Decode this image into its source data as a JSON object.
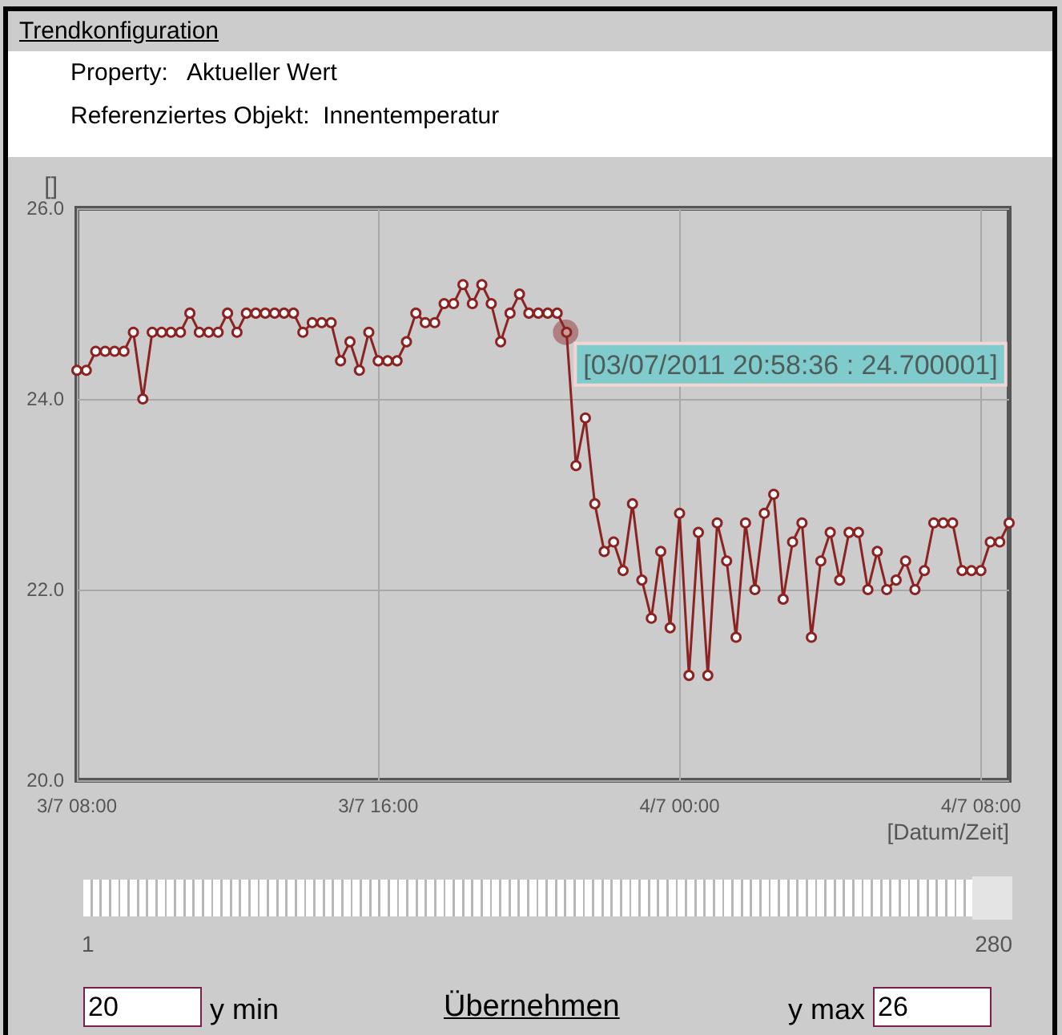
{
  "chart_data": {
    "type": "line",
    "title": "Trendkonfiguration",
    "xlabel": "[Datum/Zeit]",
    "ylabel": "[]",
    "x": [
      "2011-07-03T08:00",
      "2011-07-03T08:15",
      "2011-07-03T08:30",
      "2011-07-03T08:45",
      "2011-07-03T09:00",
      "2011-07-03T09:15",
      "2011-07-03T09:30",
      "2011-07-03T09:45",
      "2011-07-03T10:00",
      "2011-07-03T10:15",
      "2011-07-03T10:30",
      "2011-07-03T10:45",
      "2011-07-03T11:00",
      "2011-07-03T11:15",
      "2011-07-03T11:30",
      "2011-07-03T11:45",
      "2011-07-03T12:00",
      "2011-07-03T12:15",
      "2011-07-03T12:30",
      "2011-07-03T12:45",
      "2011-07-03T13:00",
      "2011-07-03T13:15",
      "2011-07-03T13:30",
      "2011-07-03T13:45",
      "2011-07-03T14:00",
      "2011-07-03T14:15",
      "2011-07-03T14:30",
      "2011-07-03T14:45",
      "2011-07-03T15:00",
      "2011-07-03T15:15",
      "2011-07-03T15:30",
      "2011-07-03T15:45",
      "2011-07-03T16:00",
      "2011-07-03T16:15",
      "2011-07-03T16:30",
      "2011-07-03T16:45",
      "2011-07-03T17:00",
      "2011-07-03T17:15",
      "2011-07-03T17:30",
      "2011-07-03T17:45",
      "2011-07-03T18:00",
      "2011-07-03T18:15",
      "2011-07-03T18:30",
      "2011-07-03T18:45",
      "2011-07-03T19:00",
      "2011-07-03T19:15",
      "2011-07-03T19:30",
      "2011-07-03T19:45",
      "2011-07-03T20:00",
      "2011-07-03T20:15",
      "2011-07-03T20:30",
      "2011-07-03T20:45",
      "2011-07-03T21:00",
      "2011-07-03T21:15",
      "2011-07-03T21:30",
      "2011-07-03T21:45",
      "2011-07-03T22:00",
      "2011-07-03T22:15",
      "2011-07-03T22:30",
      "2011-07-03T22:45",
      "2011-07-03T23:00",
      "2011-07-03T23:15",
      "2011-07-03T23:30",
      "2011-07-03T23:45",
      "2011-07-04T00:00",
      "2011-07-04T00:15",
      "2011-07-04T00:30",
      "2011-07-04T00:45",
      "2011-07-04T01:00",
      "2011-07-04T01:15",
      "2011-07-04T01:30",
      "2011-07-04T01:45",
      "2011-07-04T02:00",
      "2011-07-04T02:15",
      "2011-07-04T02:30",
      "2011-07-04T02:45",
      "2011-07-04T03:00",
      "2011-07-04T03:15",
      "2011-07-04T03:30",
      "2011-07-04T03:45",
      "2011-07-04T04:00",
      "2011-07-04T04:15",
      "2011-07-04T04:30",
      "2011-07-04T04:45",
      "2011-07-04T05:00",
      "2011-07-04T05:15",
      "2011-07-04T05:30",
      "2011-07-04T05:45",
      "2011-07-04T06:00",
      "2011-07-04T06:15",
      "2011-07-04T06:30",
      "2011-07-04T06:45",
      "2011-07-04T07:00",
      "2011-07-04T07:15",
      "2011-07-04T07:30",
      "2011-07-04T07:45",
      "2011-07-04T08:00",
      "2011-07-04T08:15",
      "2011-07-04T08:30",
      "2011-07-04T08:45"
    ],
    "series": [
      {
        "color": "#8c2323",
        "values": [
          24.3,
          24.3,
          24.5,
          24.5,
          24.5,
          24.5,
          24.7,
          24.0,
          24.7,
          24.7,
          24.7,
          24.7,
          24.9,
          24.7,
          24.7,
          24.7,
          24.9,
          24.7,
          24.9,
          24.9,
          24.9,
          24.9,
          24.9,
          24.9,
          24.7,
          24.8,
          24.8,
          24.8,
          24.4,
          24.6,
          24.3,
          24.7,
          24.4,
          24.4,
          24.4,
          24.6,
          24.9,
          24.8,
          24.8,
          25.0,
          25.0,
          25.2,
          25.0,
          25.2,
          25.0,
          24.6,
          24.9,
          25.1,
          24.9,
          24.9,
          24.9,
          24.9,
          24.7,
          23.3,
          23.8,
          22.9,
          22.4,
          22.5,
          22.2,
          22.9,
          22.1,
          21.7,
          22.4,
          21.6,
          22.8,
          21.1,
          22.6,
          21.1,
          22.7,
          22.3,
          21.5,
          22.7,
          22.0,
          22.8,
          23.0,
          21.9,
          22.5,
          22.7,
          21.5,
          22.3,
          22.6,
          22.1,
          22.6,
          22.6,
          22.0,
          22.4,
          22.0,
          22.1,
          22.3,
          22.0,
          22.2,
          22.7,
          22.7,
          22.7,
          22.2,
          22.2,
          22.2,
          22.5,
          22.5,
          22.7
        ]
      }
    ],
    "xlim": [
      "2011-07-03T08:00",
      "2011-07-04T08:45"
    ],
    "xticks": [
      {
        "value": "2011-07-03T08:00",
        "label": "3/7 08:00"
      },
      {
        "value": "2011-07-03T16:00",
        "label": "3/7 16:00"
      },
      {
        "value": "2011-07-04T00:00",
        "label": "4/7 00:00"
      },
      {
        "value": "2011-07-04T08:00",
        "label": "4/7 08:00"
      }
    ],
    "ylim": [
      20,
      26
    ],
    "yticks": [
      {
        "value": 20,
        "label": "20.0"
      },
      {
        "value": 22,
        "label": "22.0"
      },
      {
        "value": 24,
        "label": "24.0"
      },
      {
        "value": 26,
        "label": "26.0"
      }
    ],
    "grid": true,
    "marker": "circle",
    "line_style": "solid",
    "annotations": [
      "Property:   Aktueller Wert",
      "Referenziertes Objekt:  Innentemperatur",
      {
        "text": "[03/07/2011 20:58:36 : 24.700001]",
        "x": "2011-07-03T20:58:36",
        "y": 24.7
      },
      "1",
      "280",
      "20",
      "y min",
      "Übernehmen",
      "y max",
      "26"
    ]
  }
}
